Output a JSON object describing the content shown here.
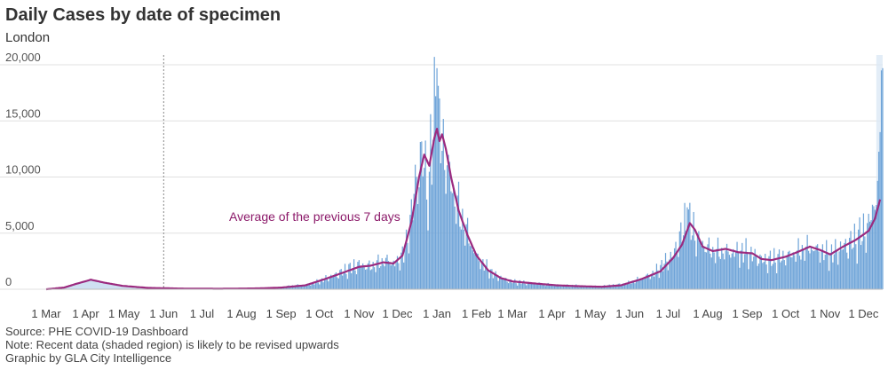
{
  "title": "Daily Cases by date of specimen",
  "subtitle": "London",
  "footer": {
    "source": "Source: PHE COVID-19 Dashboard",
    "note": "Note: Recent data (shaded region) is likely to be revised upwards",
    "credit": "Graphic by GLA City Intelligence"
  },
  "colors": {
    "bar": "#6fa4d8",
    "line": "#9b2a7f",
    "annotation": "#8c1a6a",
    "grid": "#e0e0e0",
    "area": "#cfe0f2",
    "shaded": "#dce8f5"
  },
  "chart_data": {
    "type": "bar",
    "title": "Daily Cases by date of specimen",
    "subtitle": "London",
    "xlabel": "",
    "ylabel": "",
    "ylim": [
      0,
      20000
    ],
    "yticks": [
      0,
      5000,
      10000,
      15000,
      20000
    ],
    "ytick_labels": [
      "0",
      "5,000",
      "10,000",
      "15,000",
      "20,000"
    ],
    "xtick_labels": [
      "1 Mar",
      "1 Apr",
      "1 May",
      "1 Jun",
      "1 Jul",
      "1 Aug",
      "1 Sep",
      "1 Oct",
      "1 Nov",
      "1 Dec",
      "1 Jan",
      "1 Feb",
      "1 Mar",
      "1 Apr",
      "1 May",
      "1 Jun",
      "1 Jul",
      "1 Aug",
      "1 Sep",
      "1 Oct",
      "1 Nov",
      "1 Dec"
    ],
    "xtick_months_from_start": [
      0,
      1,
      2,
      3,
      4,
      5,
      6,
      7,
      8,
      9,
      10,
      11,
      12,
      13,
      14,
      15,
      16,
      17,
      18,
      19,
      20,
      21
    ],
    "start_date": "1 Mar 2020",
    "end_date": "16 Dec 2021",
    "vertical_reference_line": "1 Jun 2020",
    "annotation": "Average of the previous 7 days",
    "shaded_region": "last 5 days (recent data likely revised)",
    "series_description": "Daily cases (bars, drawn from 2020-07 onward) and 7-day average (line)",
    "seven_day_average_keypoints": [
      {
        "date": "2020-03-01",
        "value": 0
      },
      {
        "date": "2020-03-15",
        "value": 150
      },
      {
        "date": "2020-03-25",
        "value": 500
      },
      {
        "date": "2020-04-05",
        "value": 850
      },
      {
        "date": "2020-04-15",
        "value": 600
      },
      {
        "date": "2020-04-30",
        "value": 300
      },
      {
        "date": "2020-05-20",
        "value": 120
      },
      {
        "date": "2020-06-15",
        "value": 60
      },
      {
        "date": "2020-07-15",
        "value": 40
      },
      {
        "date": "2020-08-15",
        "value": 80
      },
      {
        "date": "2020-09-01",
        "value": 150
      },
      {
        "date": "2020-09-20",
        "value": 350
      },
      {
        "date": "2020-10-05",
        "value": 900
      },
      {
        "date": "2020-10-20",
        "value": 1500
      },
      {
        "date": "2020-11-01",
        "value": 2000
      },
      {
        "date": "2020-11-10",
        "value": 2100
      },
      {
        "date": "2020-11-20",
        "value": 2400
      },
      {
        "date": "2020-11-28",
        "value": 2300
      },
      {
        "date": "2020-12-05",
        "value": 3000
      },
      {
        "date": "2020-12-12",
        "value": 6000
      },
      {
        "date": "2020-12-18",
        "value": 10000
      },
      {
        "date": "2020-12-22",
        "value": 12000
      },
      {
        "date": "2020-12-26",
        "value": 11000
      },
      {
        "date": "2020-12-30",
        "value": 13500
      },
      {
        "date": "2021-01-01",
        "value": 14300
      },
      {
        "date": "2021-01-03",
        "value": 13200
      },
      {
        "date": "2021-01-05",
        "value": 13800
      },
      {
        "date": "2021-01-08",
        "value": 12500
      },
      {
        "date": "2021-01-12",
        "value": 10000
      },
      {
        "date": "2021-01-18",
        "value": 7000
      },
      {
        "date": "2021-01-25",
        "value": 4800
      },
      {
        "date": "2021-02-01",
        "value": 3000
      },
      {
        "date": "2021-02-10",
        "value": 1700
      },
      {
        "date": "2021-02-20",
        "value": 1000
      },
      {
        "date": "2021-03-01",
        "value": 700
      },
      {
        "date": "2021-03-20",
        "value": 500
      },
      {
        "date": "2021-04-05",
        "value": 350
      },
      {
        "date": "2021-04-20",
        "value": 280
      },
      {
        "date": "2021-05-10",
        "value": 220
      },
      {
        "date": "2021-05-25",
        "value": 350
      },
      {
        "date": "2021-06-10",
        "value": 900
      },
      {
        "date": "2021-06-25",
        "value": 1600
      },
      {
        "date": "2021-07-05",
        "value": 2800
      },
      {
        "date": "2021-07-12",
        "value": 4000
      },
      {
        "date": "2021-07-18",
        "value": 5900
      },
      {
        "date": "2021-07-22",
        "value": 5300
      },
      {
        "date": "2021-07-28",
        "value": 3800
      },
      {
        "date": "2021-08-05",
        "value": 3400
      },
      {
        "date": "2021-08-15",
        "value": 3600
      },
      {
        "date": "2021-08-25",
        "value": 3300
      },
      {
        "date": "2021-09-05",
        "value": 3200
      },
      {
        "date": "2021-09-12",
        "value": 2700
      },
      {
        "date": "2021-09-20",
        "value": 2600
      },
      {
        "date": "2021-10-01",
        "value": 2900
      },
      {
        "date": "2021-10-10",
        "value": 3300
      },
      {
        "date": "2021-10-20",
        "value": 3800
      },
      {
        "date": "2021-10-28",
        "value": 3500
      },
      {
        "date": "2021-11-05",
        "value": 3100
      },
      {
        "date": "2021-11-15",
        "value": 3800
      },
      {
        "date": "2021-11-25",
        "value": 4400
      },
      {
        "date": "2021-12-05",
        "value": 5200
      },
      {
        "date": "2021-12-10",
        "value": 6300
      },
      {
        "date": "2021-12-14",
        "value": 8000
      }
    ],
    "bar_keypoints": [
      {
        "date": "2020-06-20",
        "value": 0
      },
      {
        "date": "2020-08-15",
        "value": 100
      },
      {
        "date": "2020-09-01",
        "value": 200
      },
      {
        "date": "2020-09-25",
        "value": 500
      },
      {
        "date": "2020-10-15",
        "value": 1400
      },
      {
        "date": "2020-11-01",
        "value": 2300
      },
      {
        "date": "2020-11-10",
        "value": 2100
      },
      {
        "date": "2020-11-22",
        "value": 2700
      },
      {
        "date": "2020-12-01",
        "value": 2400
      },
      {
        "date": "2020-12-08",
        "value": 4000
      },
      {
        "date": "2020-12-15",
        "value": 9500
      },
      {
        "date": "2020-12-20",
        "value": 12500
      },
      {
        "date": "2020-12-26",
        "value": 9000
      },
      {
        "date": "2020-12-29",
        "value": 15000
      },
      {
        "date": "2021-01-01",
        "value": 16500
      },
      {
        "date": "2021-01-04",
        "value": 14000
      },
      {
        "date": "2021-01-08",
        "value": 12000
      },
      {
        "date": "2021-01-15",
        "value": 8500
      },
      {
        "date": "2021-01-22",
        "value": 6000
      },
      {
        "date": "2021-02-01",
        "value": 3000
      },
      {
        "date": "2021-02-15",
        "value": 1300
      },
      {
        "date": "2021-03-01",
        "value": 700
      },
      {
        "date": "2021-04-01",
        "value": 400
      },
      {
        "date": "2021-05-10",
        "value": 250
      },
      {
        "date": "2021-06-01",
        "value": 600
      },
      {
        "date": "2021-06-20",
        "value": 1500
      },
      {
        "date": "2021-07-05",
        "value": 3200
      },
      {
        "date": "2021-07-16",
        "value": 6500
      },
      {
        "date": "2021-07-25",
        "value": 4500
      },
      {
        "date": "2021-08-05",
        "value": 3500
      },
      {
        "date": "2021-09-01",
        "value": 3400
      },
      {
        "date": "2021-09-15",
        "value": 2600
      },
      {
        "date": "2021-10-01",
        "value": 3000
      },
      {
        "date": "2021-10-20",
        "value": 3900
      },
      {
        "date": "2021-11-05",
        "value": 3200
      },
      {
        "date": "2021-11-25",
        "value": 4600
      },
      {
        "date": "2021-12-05",
        "value": 5800
      },
      {
        "date": "2021-12-10",
        "value": 8500
      },
      {
        "date": "2021-12-13",
        "value": 10000
      }
    ],
    "notable_bars": [
      {
        "date": "2021-01-01",
        "value": 19700
      },
      {
        "date": "2020-12-31",
        "value": 17200
      },
      {
        "date": "2021-01-03",
        "value": 17000
      },
      {
        "date": "2020-12-27",
        "value": 15600
      },
      {
        "date": "2021-07-16",
        "value": 7300
      },
      {
        "date": "2021-12-14",
        "value": 14000
      },
      {
        "date": "2021-12-15",
        "value": 19500
      },
      {
        "date": "2021-12-16",
        "value": 19700
      }
    ]
  }
}
